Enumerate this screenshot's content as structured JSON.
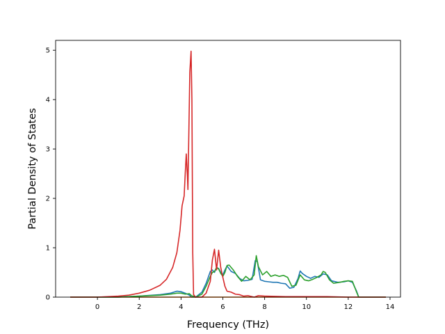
{
  "chart_data": {
    "type": "line",
    "title": "",
    "xlabel": "Frequency (THz)",
    "ylabel": "Partial Density of States",
    "xlim": [
      -2,
      14.5
    ],
    "ylim": [
      0,
      5.2
    ],
    "xticks": [
      0,
      2,
      4,
      6,
      8,
      10,
      12,
      14
    ],
    "yticks": [
      0,
      1,
      2,
      3,
      4,
      5
    ],
    "grid": false,
    "series": [
      {
        "color": "#1f77b4",
        "x": [
          -1.3,
          1.0,
          2.0,
          3.0,
          3.5,
          3.8,
          4.0,
          4.2,
          4.4,
          4.5,
          4.7,
          5.0,
          5.2,
          5.4,
          5.5,
          5.6,
          5.7,
          5.8,
          5.9,
          6.0,
          6.1,
          6.2,
          6.4,
          6.6,
          6.8,
          7.0,
          7.2,
          7.4,
          7.55,
          7.65,
          7.8,
          8.0,
          8.2,
          8.4,
          8.6,
          8.8,
          9.0,
          9.2,
          9.4,
          9.6,
          9.7,
          9.8,
          10.0,
          10.2,
          10.4,
          10.6,
          10.8,
          11.0,
          11.2,
          11.5,
          11.8,
          12.0,
          12.2,
          12.4,
          12.5,
          13.0,
          13.8
        ],
        "values": [
          0.0,
          0.0,
          0.02,
          0.05,
          0.08,
          0.12,
          0.11,
          0.08,
          0.04,
          0.0,
          0.0,
          0.1,
          0.28,
          0.52,
          0.55,
          0.5,
          0.6,
          0.58,
          0.5,
          0.45,
          0.55,
          0.63,
          0.52,
          0.48,
          0.38,
          0.33,
          0.34,
          0.36,
          0.74,
          0.72,
          0.35,
          0.32,
          0.31,
          0.3,
          0.3,
          0.28,
          0.27,
          0.18,
          0.2,
          0.38,
          0.53,
          0.48,
          0.42,
          0.38,
          0.42,
          0.4,
          0.47,
          0.45,
          0.33,
          0.3,
          0.31,
          0.33,
          0.3,
          0.12,
          0.0,
          0.0,
          0.0
        ]
      },
      {
        "color": "#ff7f0e",
        "x": [
          -1.3,
          13.8
        ],
        "values": [
          0.0,
          0.0
        ]
      },
      {
        "color": "#2ca02c",
        "x": [
          -1.3,
          1.0,
          2.0,
          3.0,
          3.5,
          3.8,
          4.0,
          4.2,
          4.4,
          4.5,
          4.7,
          5.0,
          5.2,
          5.4,
          5.5,
          5.6,
          5.7,
          5.8,
          5.9,
          6.0,
          6.1,
          6.2,
          6.3,
          6.5,
          6.7,
          6.9,
          7.1,
          7.3,
          7.5,
          7.6,
          7.7,
          7.9,
          8.1,
          8.3,
          8.5,
          8.7,
          8.9,
          9.1,
          9.3,
          9.5,
          9.7,
          9.9,
          10.1,
          10.3,
          10.5,
          10.7,
          10.8,
          10.9,
          11.1,
          11.3,
          11.6,
          11.8,
          12.0,
          12.2,
          12.4,
          12.5,
          13.0,
          13.8
        ],
        "values": [
          0.0,
          0.0,
          0.02,
          0.04,
          0.06,
          0.08,
          0.08,
          0.06,
          0.07,
          0.03,
          0.0,
          0.06,
          0.22,
          0.42,
          0.5,
          0.52,
          0.6,
          0.57,
          0.48,
          0.42,
          0.5,
          0.64,
          0.65,
          0.55,
          0.42,
          0.32,
          0.42,
          0.35,
          0.45,
          0.84,
          0.62,
          0.45,
          0.52,
          0.42,
          0.45,
          0.42,
          0.44,
          0.4,
          0.22,
          0.24,
          0.45,
          0.35,
          0.33,
          0.36,
          0.4,
          0.45,
          0.52,
          0.5,
          0.35,
          0.28,
          0.3,
          0.32,
          0.33,
          0.32,
          0.1,
          0.0,
          0.0,
          0.0
        ]
      },
      {
        "color": "#d62728",
        "x": [
          -1.3,
          0.0,
          1.0,
          1.5,
          2.0,
          2.5,
          3.0,
          3.3,
          3.6,
          3.8,
          3.95,
          4.05,
          4.15,
          4.2,
          4.25,
          4.3,
          4.33,
          4.38,
          4.42,
          4.48,
          4.52,
          4.56,
          4.6,
          4.7,
          5.0,
          5.2,
          5.4,
          5.5,
          5.6,
          5.7,
          5.8,
          5.9,
          6.0,
          6.1,
          6.2,
          6.4,
          6.6,
          6.8,
          7.0,
          7.2,
          7.5,
          7.7,
          8.0,
          9.0,
          10.0,
          11.0,
          12.0,
          13.0,
          13.8
        ],
        "values": [
          0.0,
          0.0,
          0.02,
          0.04,
          0.08,
          0.14,
          0.24,
          0.36,
          0.6,
          0.9,
          1.35,
          1.85,
          2.05,
          2.5,
          2.9,
          2.5,
          2.18,
          3.5,
          4.55,
          4.98,
          4.0,
          0.9,
          0.05,
          0.0,
          0.0,
          0.08,
          0.32,
          0.75,
          0.97,
          0.55,
          0.95,
          0.6,
          0.4,
          0.22,
          0.12,
          0.1,
          0.06,
          0.05,
          0.02,
          0.03,
          0.0,
          0.03,
          0.02,
          0.01,
          0.01,
          0.01,
          0.0,
          0.0,
          0.0
        ]
      }
    ]
  }
}
